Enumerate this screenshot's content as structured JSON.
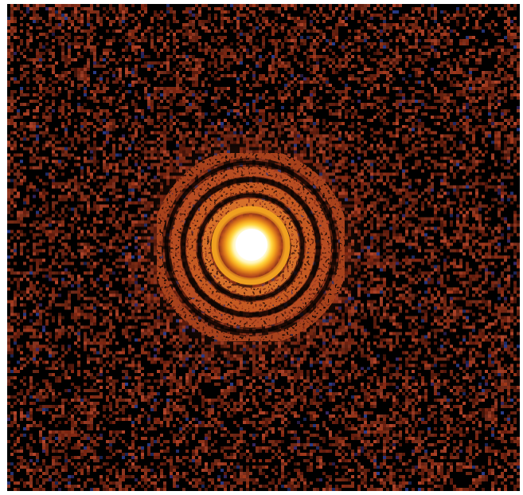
{
  "image": {
    "subject": "point-source-diffraction-pattern",
    "background_color": "#000000",
    "noise_colors": [
      "#8a2a14",
      "#a63a1c",
      "#6e2010",
      "#b5452a",
      "#2a3c8a",
      "#3a2a6a"
    ],
    "core_color": "#ffffff",
    "halo_colors": [
      "#fff3a0",
      "#ffcf3a",
      "#f2a020",
      "#d8681c",
      "#b8461e",
      "#8e3218"
    ],
    "ring_color": "#b04a24",
    "frame_color": "#ffffff"
  }
}
